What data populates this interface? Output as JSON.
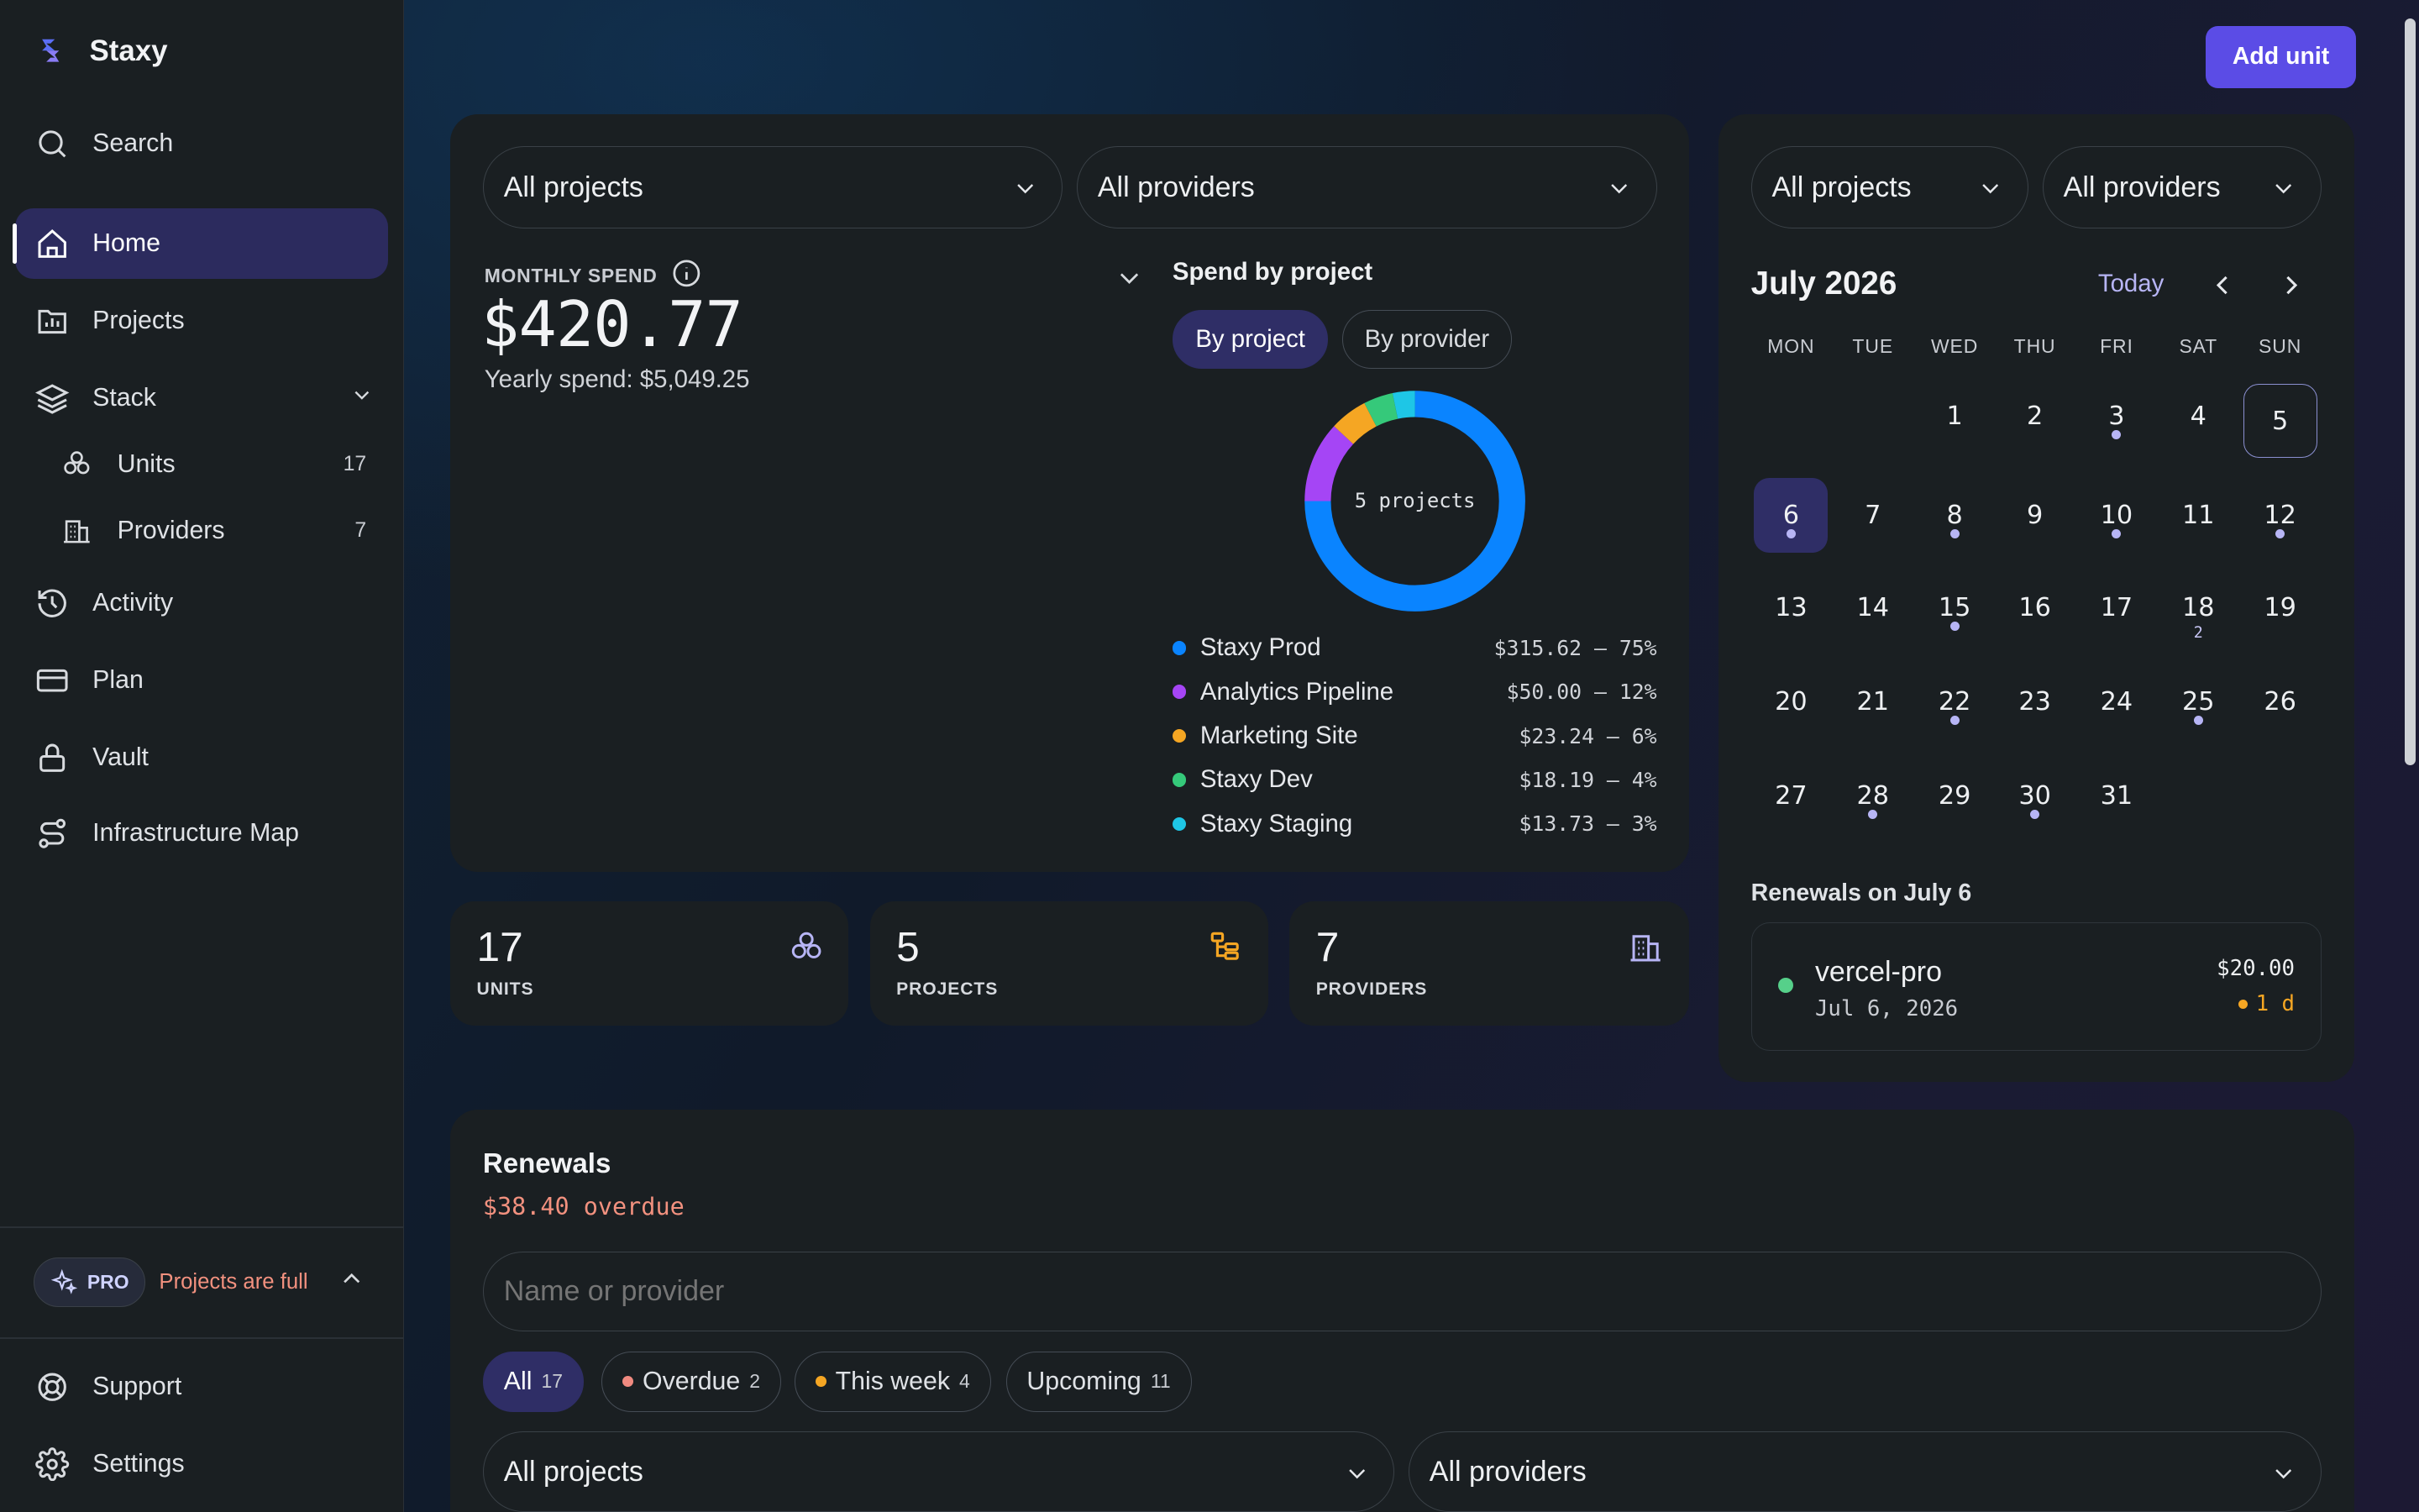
{
  "app": {
    "name": "Staxy"
  },
  "sidebar": {
    "search": "Search",
    "items": [
      {
        "label": "Home"
      },
      {
        "label": "Projects"
      },
      {
        "label": "Stack"
      },
      {
        "label": "Units",
        "count": "17"
      },
      {
        "label": "Providers",
        "count": "7"
      },
      {
        "label": "Activity"
      },
      {
        "label": "Plan"
      },
      {
        "label": "Vault"
      },
      {
        "label": "Infrastructure Map"
      }
    ],
    "pro": {
      "badge": "PRO",
      "message": "Projects are full"
    },
    "footer": [
      {
        "label": "Support"
      },
      {
        "label": "Settings"
      }
    ]
  },
  "header": {
    "add_button": "Add unit"
  },
  "spend": {
    "project_filter": "All projects",
    "provider_filter": "All providers",
    "label": "MONTHLY SPEND",
    "amount": "$420.77",
    "yearly": "Yearly spend: $5,049.25",
    "breakdown_title": "Spend by project",
    "toggle_project": "By project",
    "toggle_provider": "By provider",
    "donut_label": "5 projects"
  },
  "chart_data": {
    "type": "pie",
    "title": "Spend by project",
    "center_label": "5 projects",
    "series": [
      {
        "name": "Staxy Prod",
        "value": 315.62,
        "display": "$315.62 — 75%",
        "color": "#0a84ff"
      },
      {
        "name": "Analytics Pipeline",
        "value": 50.0,
        "display": "$50.00 — 12%",
        "color": "#a545f5"
      },
      {
        "name": "Marketing Site",
        "value": 23.24,
        "display": "$23.24 — 6%",
        "color": "#f5a623"
      },
      {
        "name": "Staxy Dev",
        "value": 18.19,
        "display": "$18.19 — 4%",
        "color": "#35c97a"
      },
      {
        "name": "Staxy Staging",
        "value": 13.73,
        "display": "$13.73 — 3%",
        "color": "#1ec6e6"
      }
    ]
  },
  "stats": [
    {
      "value": "17",
      "label": "UNITS",
      "icon": "units-icon",
      "color": "#b7b5f5"
    },
    {
      "value": "5",
      "label": "PROJECTS",
      "icon": "projects-icon",
      "color": "#f5a623"
    },
    {
      "value": "7",
      "label": "PROVIDERS",
      "icon": "providers-icon",
      "color": "#b7b5f5"
    }
  ],
  "calendar": {
    "project_filter": "All projects",
    "provider_filter": "All providers",
    "month": "July 2026",
    "today_button": "Today",
    "weekdays": [
      "MON",
      "TUE",
      "WED",
      "THU",
      "FRI",
      "SAT",
      "SUN"
    ],
    "days": [
      {
        "d": "1"
      },
      {
        "d": "2"
      },
      {
        "d": "3",
        "dot": true
      },
      {
        "d": "4"
      },
      {
        "d": "5",
        "selected": true
      },
      {
        "d": "6",
        "today": true,
        "dot": true
      },
      {
        "d": "7"
      },
      {
        "d": "8",
        "dot": true
      },
      {
        "d": "9"
      },
      {
        "d": "10",
        "dot": true
      },
      {
        "d": "11"
      },
      {
        "d": "12",
        "dot": true
      },
      {
        "d": "13"
      },
      {
        "d": "14"
      },
      {
        "d": "15",
        "dot": true
      },
      {
        "d": "16"
      },
      {
        "d": "17"
      },
      {
        "d": "18",
        "count": "2"
      },
      {
        "d": "19"
      },
      {
        "d": "20"
      },
      {
        "d": "21"
      },
      {
        "d": "22",
        "dot": true
      },
      {
        "d": "23"
      },
      {
        "d": "24"
      },
      {
        "d": "25",
        "dot": true
      },
      {
        "d": "26"
      },
      {
        "d": "27"
      },
      {
        "d": "28",
        "dot": true
      },
      {
        "d": "29"
      },
      {
        "d": "30",
        "dot": true
      },
      {
        "d": "31"
      }
    ],
    "renewals_title": "Renewals on July 6",
    "renewal": {
      "name": "vercel-pro",
      "date": "Jul 6, 2026",
      "price": "$20.00",
      "due": "1 d"
    }
  },
  "renewals": {
    "title": "Renewals",
    "overdue": "$38.40 overdue",
    "search_placeholder": "Name or provider",
    "filters": [
      {
        "label": "All",
        "count": "17"
      },
      {
        "label": "Overdue",
        "count": "2",
        "color": "#f08a80"
      },
      {
        "label": "This week",
        "count": "4",
        "color": "#f5a623"
      },
      {
        "label": "Upcoming",
        "count": "11"
      }
    ],
    "project_filter": "All projects",
    "provider_filter": "All providers"
  }
}
